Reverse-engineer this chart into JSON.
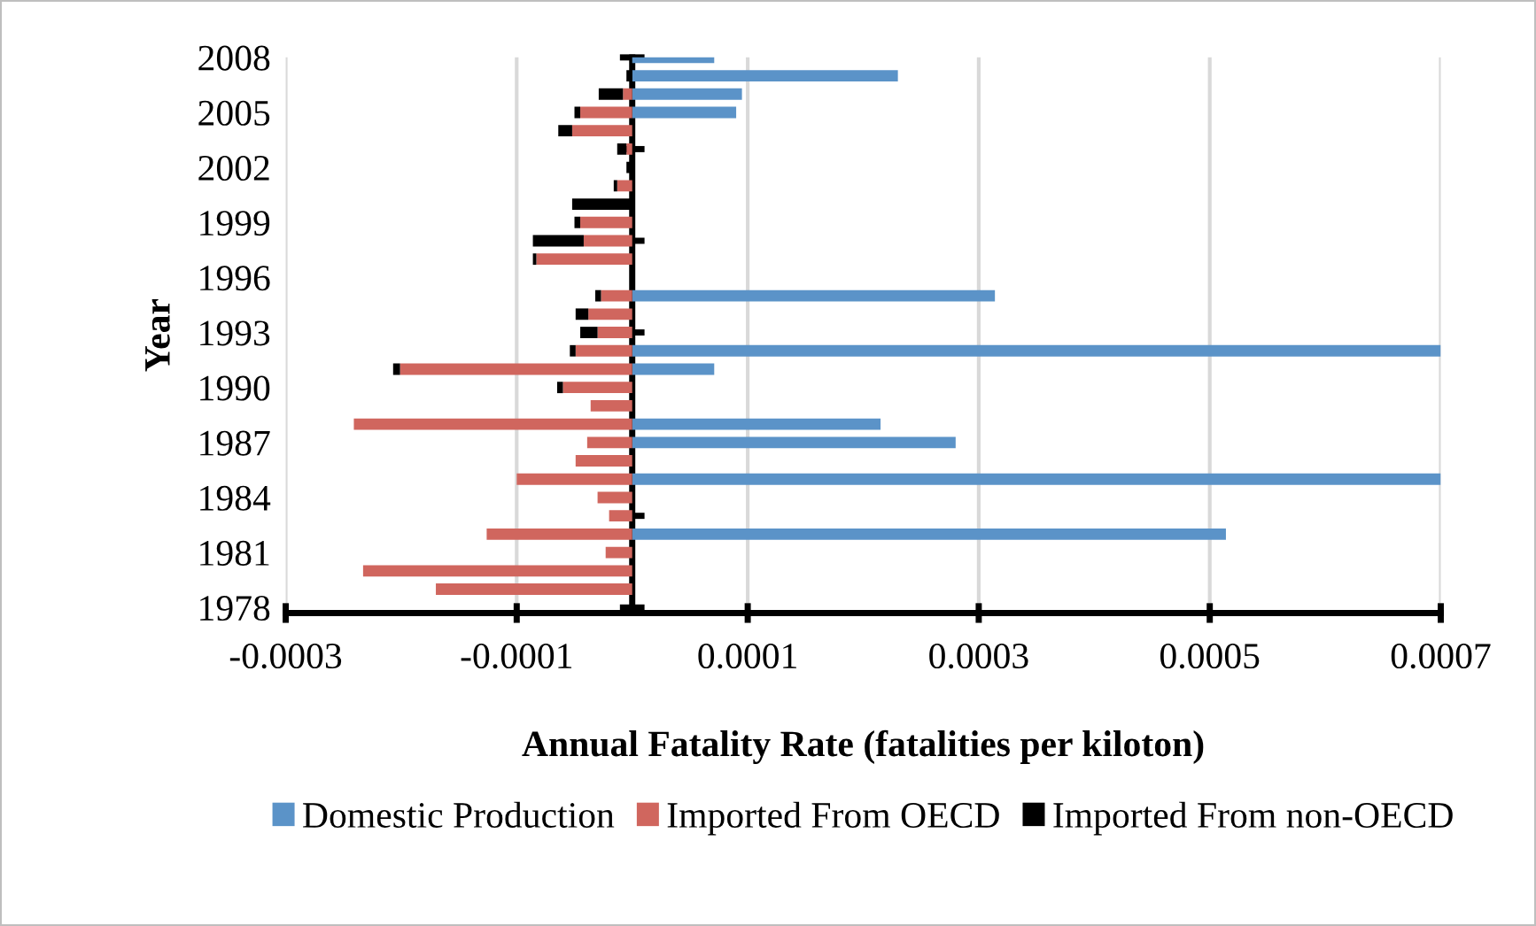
{
  "chart_data": {
    "type": "bar",
    "orientation": "horizontal",
    "stacked": true,
    "xlabel": "Annual Fatality Rate (fatalities per kiloton)",
    "ylabel": "Year",
    "categories": [
      "2008",
      null,
      null,
      "2005",
      null,
      null,
      "2002",
      null,
      null,
      "1999",
      null,
      null,
      "1996",
      null,
      null,
      "1993",
      null,
      null,
      "1990",
      null,
      null,
      "1987",
      null,
      null,
      "1984",
      null,
      null,
      "1981",
      null,
      null,
      "1978"
    ],
    "series": [
      {
        "name": "Domestic Production",
        "color": "#5b93c8",
        "values": [
          7.1e-05,
          0.00023,
          9.5e-05,
          9e-05,
          null,
          null,
          null,
          null,
          null,
          null,
          null,
          null,
          null,
          0.000314,
          null,
          null,
          0.0007,
          7.1e-05,
          null,
          null,
          0.000215,
          0.00028,
          null,
          0.0007,
          null,
          null,
          0.000514,
          null,
          null,
          null,
          null
        ]
      },
      {
        "name": "Imported From OECD",
        "color": "#d0665e",
        "values": [
          null,
          null,
          -8e-06,
          -4.5e-05,
          -5.2e-05,
          -5e-06,
          null,
          -1.3e-05,
          null,
          -4.5e-05,
          -4.2e-05,
          -8.3e-05,
          null,
          -2.7e-05,
          -3.8e-05,
          -3e-05,
          -4.9e-05,
          -0.000201,
          -6e-05,
          -3.6e-05,
          -0.000241,
          -3.9e-05,
          -4.9e-05,
          -0.0001,
          -3e-05,
          -2e-05,
          -0.000126,
          -2.3e-05,
          -0.000233,
          -0.00017,
          null
        ]
      },
      {
        "name": "Imported From non-OECD",
        "color": "#000000",
        "values": [
          null,
          -5e-06,
          -2.1e-05,
          -5e-06,
          -1.2e-05,
          -8e-06,
          -5e-06,
          -3e-06,
          -5.2e-05,
          -5e-06,
          -4.4e-05,
          -3e-06,
          null,
          -5e-06,
          -1.1e-05,
          -1.5e-05,
          -5e-06,
          -6e-06,
          -5e-06,
          null,
          null,
          null,
          null,
          null,
          null,
          null,
          null,
          null,
          null,
          null,
          null
        ]
      }
    ],
    "xlim": [
      -0.0003,
      0.0007
    ],
    "xticks": [
      -0.0003,
      -0.0001,
      0.0001,
      0.0003,
      0.0005,
      0.0007
    ],
    "grid": "x",
    "legend": "bottom"
  }
}
